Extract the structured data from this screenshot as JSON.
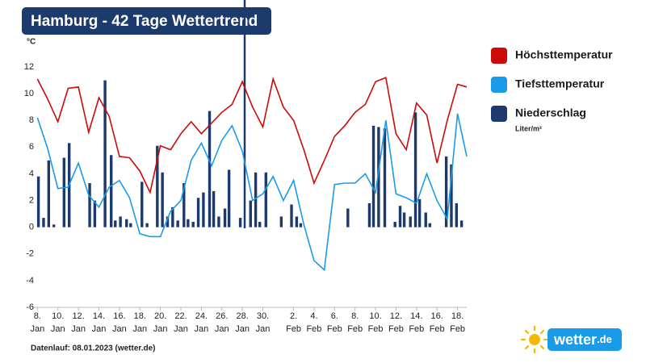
{
  "chart_data": {
    "type": "combo",
    "title": "Hamburg - 42 Tage Wettertrend",
    "y_unit": "°C",
    "precip_unit": "Liter/m²",
    "footer": "Datenlauf: 08.01.2023 (wetter.de)",
    "logo": {
      "name": "wetter",
      "suffix": ".de"
    },
    "xlim": [
      -0.5,
      41.9
    ],
    "ylim": [
      -6,
      12
    ],
    "yticks": [
      12,
      10,
      8,
      6,
      4,
      2,
      0,
      -2,
      -4,
      -6
    ],
    "xticks": [
      {
        "value": 0,
        "label": "8. Jan"
      },
      {
        "value": 2,
        "label": "10. Jan"
      },
      {
        "value": 4,
        "label": "12. Jan"
      },
      {
        "value": 6,
        "label": "14. Jan"
      },
      {
        "value": 8,
        "label": "16. Jan"
      },
      {
        "value": 10,
        "label": "18. Jan"
      },
      {
        "value": 12,
        "label": "20. Jan"
      },
      {
        "value": 14,
        "label": "22. Jan"
      },
      {
        "value": 16,
        "label": "24. Jan"
      },
      {
        "value": 18,
        "label": "26. Jan"
      },
      {
        "value": 20,
        "label": "28. Jan"
      },
      {
        "value": 22,
        "label": "30. Jan"
      },
      {
        "value": 25,
        "label": "2. Feb"
      },
      {
        "value": 27,
        "label": "4. Feb"
      },
      {
        "value": 29,
        "label": "6. Feb"
      },
      {
        "value": 31,
        "label": "8. Feb"
      },
      {
        "value": 33,
        "label": "10. Feb"
      },
      {
        "value": 35,
        "label": "12. Feb"
      },
      {
        "value": 37,
        "label": "14. Feb"
      },
      {
        "value": 39,
        "label": "16. Feb"
      },
      {
        "value": 41,
        "label": "18. Feb"
      }
    ],
    "series": [
      {
        "name": "Niederschlag",
        "type": "bar",
        "color": "#1c3a6b",
        "x": [
          0.1,
          0.6,
          1.1,
          1.6,
          2.6,
          3.1,
          5.1,
          5.6,
          6.6,
          7.2,
          7.6,
          8.1,
          8.7,
          9.1,
          10.2,
          10.7,
          11.7,
          12.2,
          12.7,
          13.2,
          13.7,
          14.3,
          14.7,
          15.2,
          15.7,
          16.2,
          16.8,
          17.2,
          17.7,
          18.3,
          18.7,
          19.8,
          20.8,
          21.3,
          21.7,
          22.3,
          23.8,
          24.8,
          25.3,
          25.7,
          30.3,
          32.4,
          32.8,
          33.3,
          33.9,
          34.9,
          35.4,
          35.8,
          36.4,
          36.9,
          37.3,
          37.9,
          38.3,
          39.9,
          40.4,
          40.9,
          41.4
        ],
        "values": [
          3.8,
          0.7,
          5.0,
          0.2,
          5.2,
          6.3,
          3.3,
          2.0,
          11.0,
          5.4,
          0.5,
          0.8,
          0.6,
          0.3,
          3.4,
          0.3,
          6.1,
          4.1,
          0.8,
          1.5,
          0.5,
          3.3,
          0.6,
          0.4,
          2.2,
          2.6,
          8.7,
          2.7,
          0.8,
          1.4,
          4.3,
          0.7,
          2.0,
          4.1,
          0.4,
          4.1,
          0.8,
          1.7,
          0.8,
          0.3,
          1.4,
          1.8,
          7.6,
          7.5,
          7.4,
          0.4,
          1.6,
          1.1,
          0.8,
          8.6,
          2.1,
          1.1,
          0.3,
          5.3,
          4.7,
          1.8,
          0.5
        ]
      },
      {
        "name": "Höchsttemperatur",
        "type": "line",
        "color": "#cc0a0a",
        "x": [
          0,
          1,
          2,
          3,
          4,
          5,
          6,
          7,
          8,
          9,
          10,
          11,
          12,
          13,
          14,
          15,
          16,
          17,
          18,
          19,
          20,
          21,
          22,
          23,
          24,
          25,
          26,
          27,
          28,
          29,
          30,
          31,
          32,
          33,
          34,
          35,
          36,
          37,
          38,
          39,
          40,
          41,
          41.9
        ],
        "values": [
          11.1,
          9.6,
          7.9,
          10.4,
          10.5,
          7.1,
          9.7,
          8.3,
          5.3,
          5.2,
          4.2,
          2.6,
          6.1,
          5.8,
          7.0,
          7.9,
          7.0,
          7.8,
          8.6,
          9.2,
          10.9,
          9.0,
          7.5,
          11.1,
          9.0,
          8.0,
          5.8,
          3.3,
          5.0,
          6.8,
          7.6,
          8.6,
          9.2,
          10.9,
          11.2,
          7.0,
          5.8,
          9.3,
          8.4,
          4.8,
          8.0,
          10.7,
          10.5
        ]
      },
      {
        "name": "Tiefsttemperatur",
        "type": "line",
        "color": "#1a9be8",
        "x": [
          0,
          1,
          2,
          3,
          4,
          5,
          6,
          7,
          8,
          9,
          10,
          11,
          12,
          13,
          14,
          15,
          16,
          17,
          18,
          19,
          20,
          21,
          22,
          23,
          24,
          25,
          26,
          27,
          28,
          29,
          30,
          31,
          32,
          33,
          34,
          35,
          36,
          37,
          38,
          39,
          40,
          41,
          41.9
        ],
        "values": [
          8.2,
          5.9,
          2.9,
          3.0,
          4.8,
          2.4,
          1.5,
          3.0,
          3.5,
          2.2,
          -0.5,
          -0.7,
          -0.7,
          1.2,
          2.0,
          5.0,
          6.3,
          4.6,
          6.5,
          7.6,
          5.7,
          2.0,
          2.5,
          3.8,
          2.0,
          3.5,
          0.2,
          -2.5,
          -3.2,
          3.2,
          3.3,
          3.3,
          4.0,
          2.6,
          8.0,
          2.5,
          2.2,
          1.8,
          4.0,
          2.0,
          0.6,
          8.5,
          5.3
        ]
      }
    ]
  }
}
